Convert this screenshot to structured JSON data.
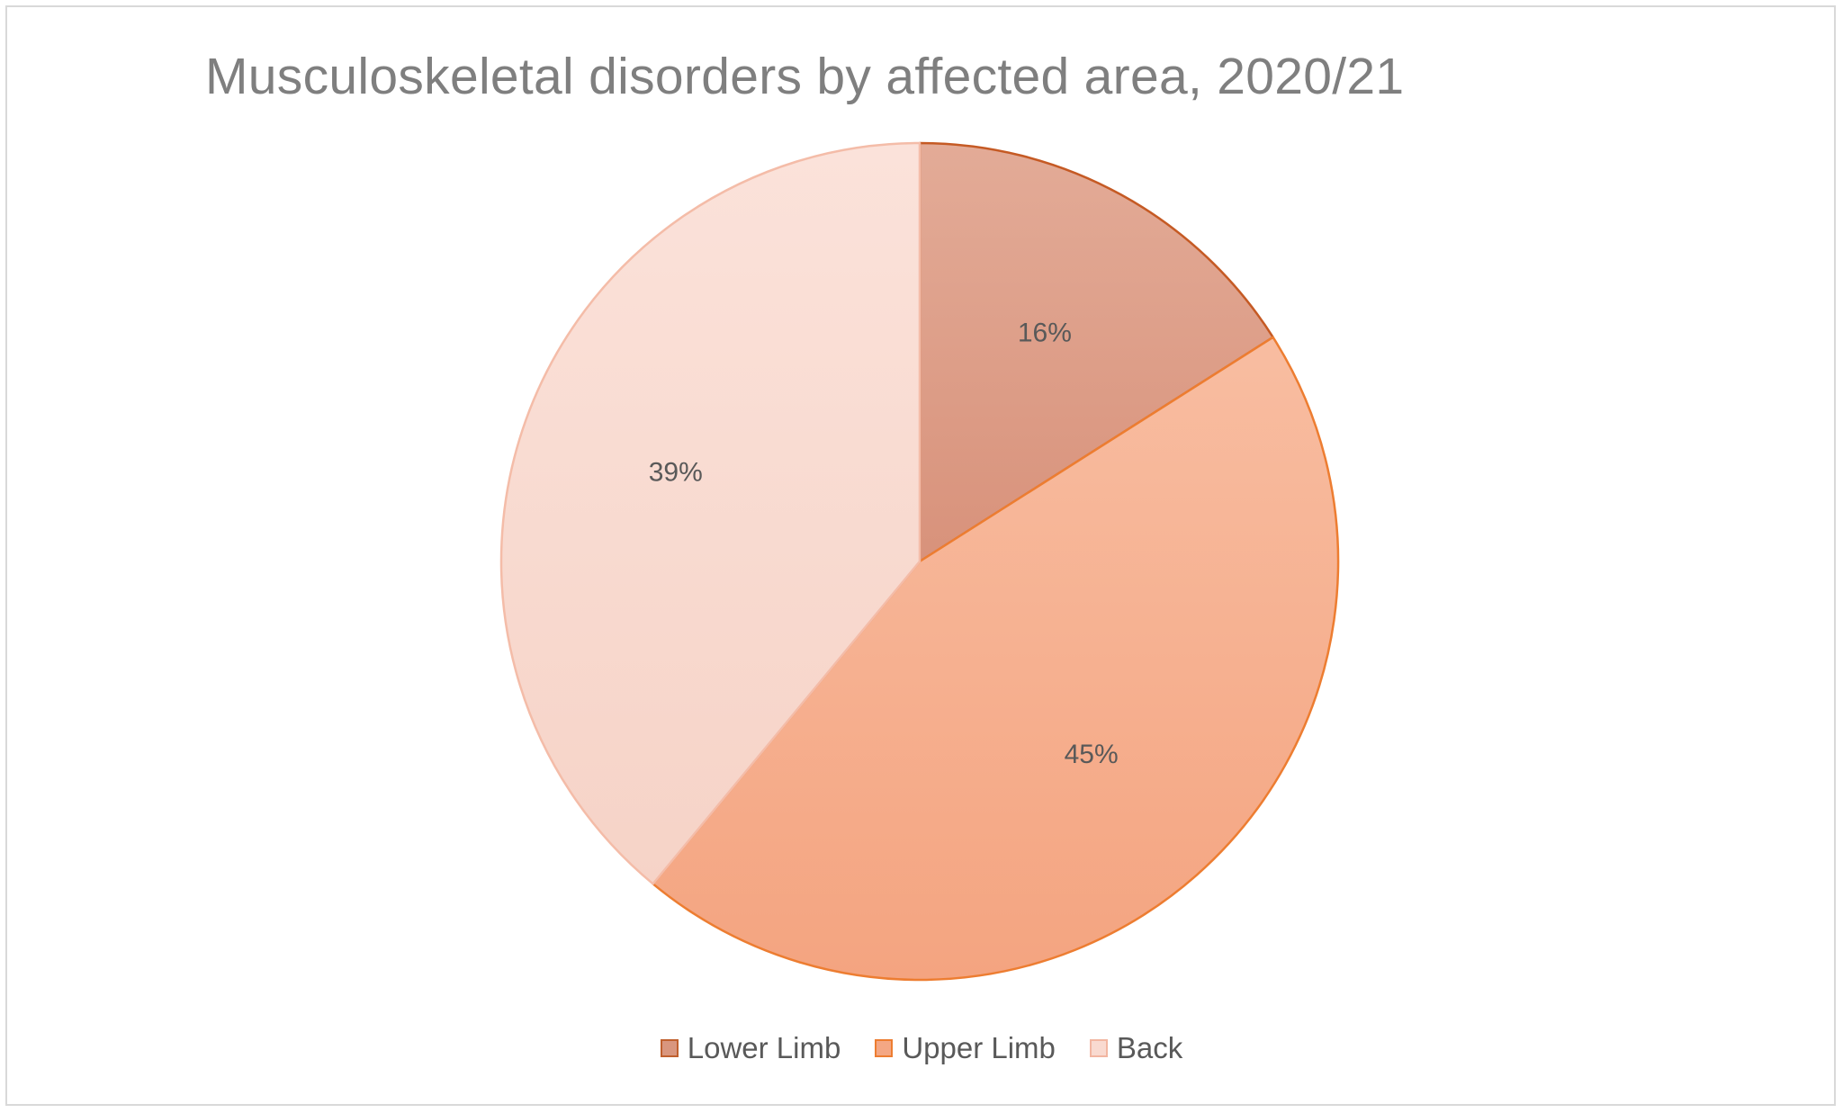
{
  "chart_data": {
    "type": "pie",
    "title": "Musculoskeletal disorders by affected area, 2020/21",
    "slices": [
      {
        "name": "Lower Limb",
        "value": 16,
        "label": "16%",
        "fill_top": "#e3ab97",
        "fill_bottom": "#d8927b",
        "stroke": "#c55a24",
        "legend_fill": "#d9967e",
        "legend_border": "#c0602e"
      },
      {
        "name": "Upper Limb",
        "value": 45,
        "label": "45%",
        "fill_top": "#f8bda1",
        "fill_bottom": "#f4a480",
        "stroke": "#ed7d31",
        "legend_fill": "#f4a784",
        "legend_border": "#ed7d31"
      },
      {
        "name": "Back",
        "value": 39,
        "label": "39%",
        "fill_top": "#fbe2da",
        "fill_bottom": "#f6d3c7",
        "stroke": "#f4bca8",
        "legend_fill": "#f9dad0",
        "legend_border": "#f2b6a1"
      }
    ],
    "legend_position": "bottom",
    "start_angle": "top, clockwise"
  }
}
